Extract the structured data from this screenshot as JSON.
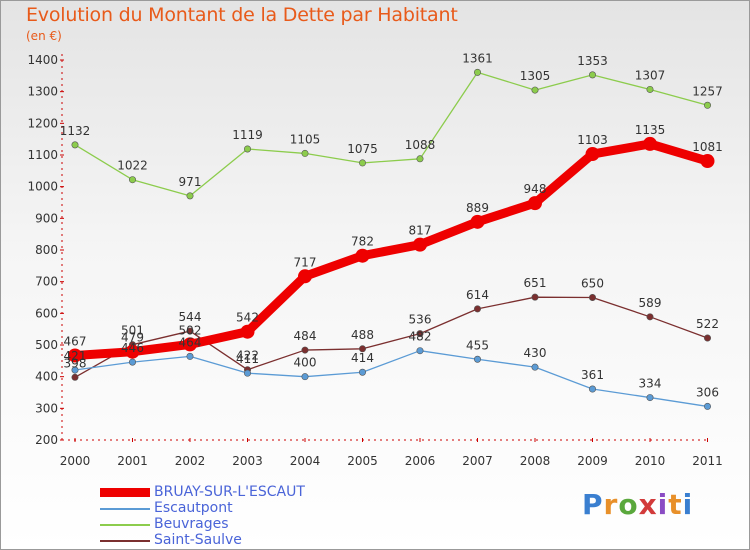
{
  "header": {
    "title": "Evolution du Montant de la Dette par Habitant",
    "unit": "(en €)"
  },
  "logo": {
    "text": "Proxiti",
    "colors": [
      "#3a7fd0",
      "#e8902a",
      "#5aa83c",
      "#d23a3a",
      "#8a4cc4",
      "#e8902a",
      "#3a7fd0"
    ]
  },
  "chart_data": {
    "type": "line",
    "title": "Evolution du Montant de la Dette par Habitant",
    "subtitle": "(en €)",
    "xlabel": "",
    "ylabel": "",
    "x": [
      "2000",
      "2001",
      "2002",
      "2003",
      "2004",
      "2005",
      "2006",
      "2007",
      "2008",
      "2009",
      "2010",
      "2011"
    ],
    "ylim": [
      200,
      1400
    ],
    "yticks": [
      200,
      300,
      400,
      500,
      600,
      700,
      800,
      900,
      1000,
      1100,
      1200,
      1300,
      1400
    ],
    "grid": false,
    "legend_position": "bottom-left",
    "series": [
      {
        "name": "BRUAY-SUR-L'ESCAUT",
        "color": "#ee0000",
        "values": [
          467,
          479,
          502,
          542,
          717,
          782,
          817,
          889,
          948,
          1103,
          1135,
          1081
        ]
      },
      {
        "name": "Escautpont",
        "color": "#5b9bd5",
        "values": [
          421,
          446,
          464,
          411,
          400,
          414,
          482,
          455,
          430,
          361,
          334,
          306
        ]
      },
      {
        "name": "Beuvrages",
        "color": "#8ccc4c",
        "values": [
          1132,
          1022,
          971,
          1119,
          1105,
          1075,
          1088,
          1361,
          1305,
          1353,
          1307,
          1257
        ]
      },
      {
        "name": "Saint-Saulve",
        "color": "#7b2f2f",
        "values": [
          398,
          501,
          544,
          422,
          484,
          488,
          536,
          614,
          651,
          650,
          589,
          522
        ]
      }
    ]
  }
}
